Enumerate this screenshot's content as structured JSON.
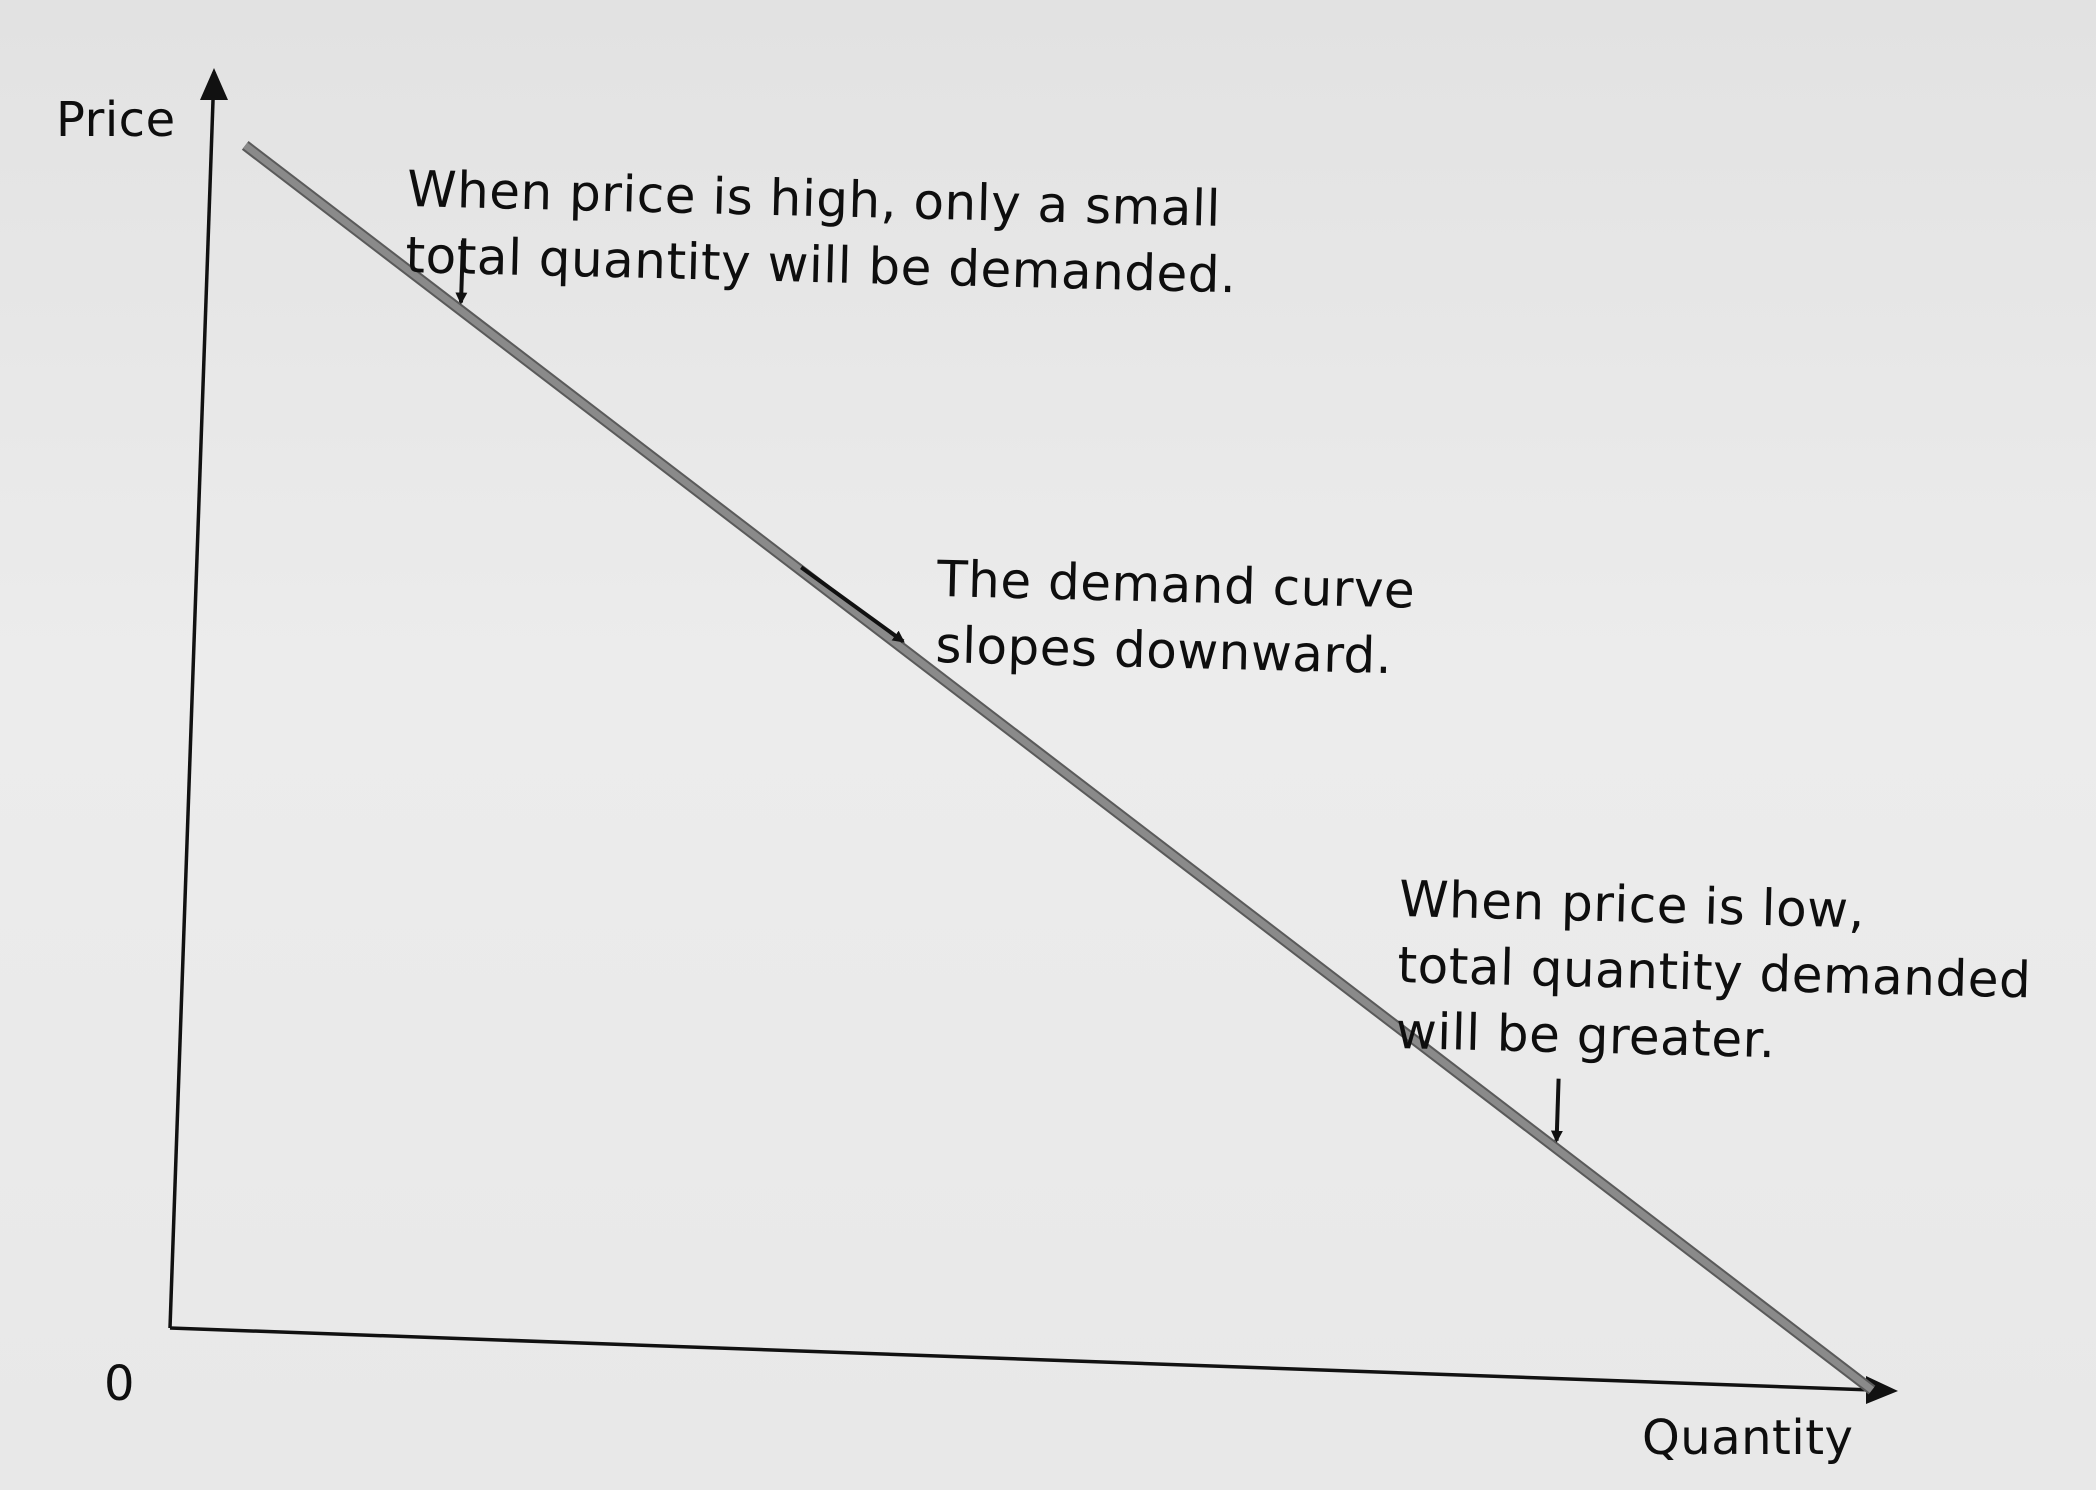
{
  "chart_data": {
    "type": "line",
    "title": "",
    "xlabel": "Quantity",
    "ylabel": "Price",
    "origin_label": "0",
    "xlim": [
      0,
      100
    ],
    "ylim": [
      0,
      100
    ],
    "series": [
      {
        "name": "",
        "x": [
          2,
          100
        ],
        "y": [
          98,
          0
        ],
        "color": "#8a8a8a"
      }
    ],
    "annotations": [
      {
        "lines": [
          "When price is high, only a small",
          "total quantity will be demanded."
        ],
        "arrow_direction": "down",
        "points_to_x": 15
      },
      {
        "lines": [
          "The demand curve",
          "slopes downward."
        ],
        "arrow_direction": "down-right",
        "points_to_x": 42
      },
      {
        "lines": [
          "When price is low,",
          "total quantity demanded",
          "will be greater."
        ],
        "arrow_direction": "down",
        "points_to_x": 81
      }
    ],
    "grid": false,
    "legend": "none"
  }
}
